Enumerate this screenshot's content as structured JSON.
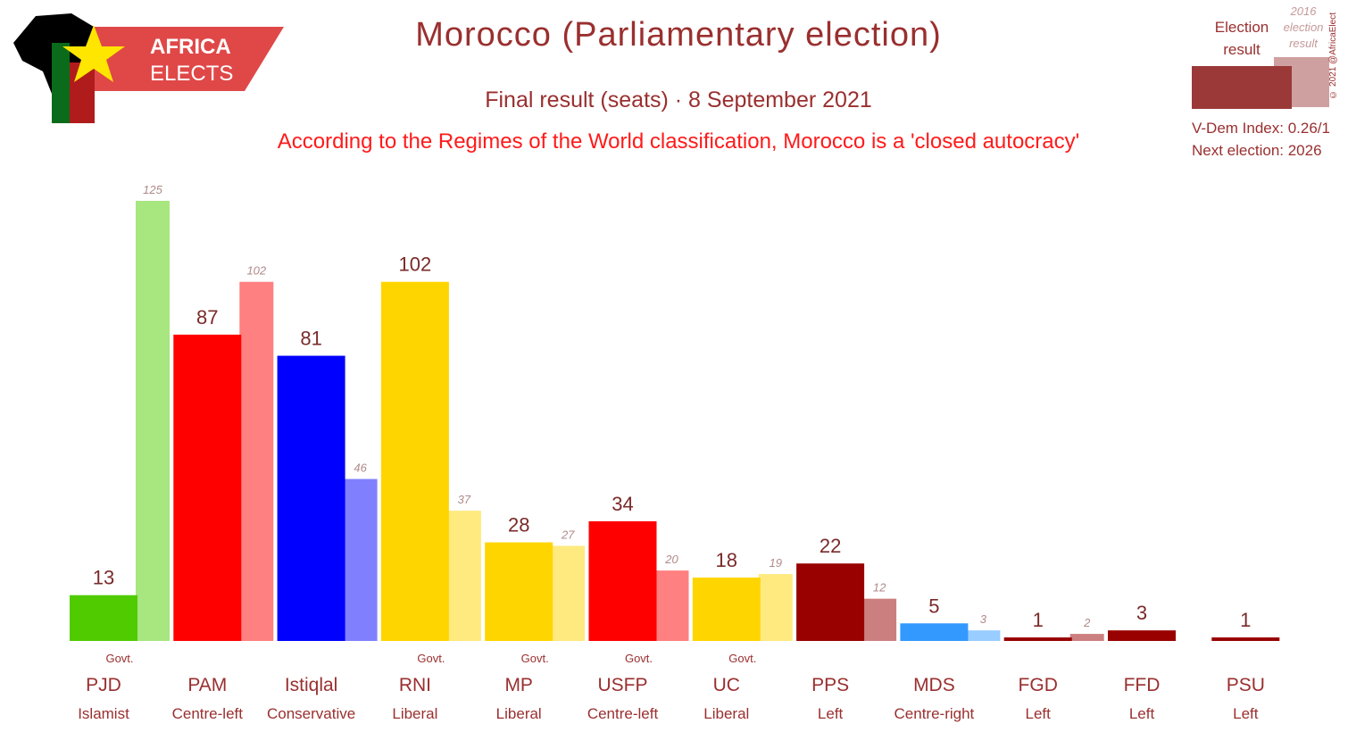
{
  "logo": {
    "line1": "AFRICA",
    "line2": "ELECTS"
  },
  "header": {
    "title": "Morocco (Parliamentary election)",
    "subtitle": "Final result (seats) · 8 September 2021",
    "note": "According to the Regimes of the World classification, Morocco is a 'closed autocracy'"
  },
  "legend": {
    "current_label": "Election result",
    "previous_label": "2016 election result",
    "current_color": "#9b3939",
    "previous_color": "#cfa0a0"
  },
  "meta": {
    "vdem": "V-Dem Index: 0.26/1",
    "next_election": "Next election: 2026",
    "copyright": "© 2021 @AfricaElect"
  },
  "chart_data": {
    "type": "bar",
    "title": "Morocco (Parliamentary election)",
    "ylim": [
      0,
      125
    ],
    "gov_label": "Govt.",
    "categories": [
      "PJD",
      "PAM",
      "Istiqlal",
      "RNI",
      "MP",
      "USFP",
      "UC",
      "PPS",
      "MDS",
      "FGD",
      "FFD",
      "PSU"
    ],
    "ideologies": [
      "Islamist",
      "Centre-left",
      "Conservative",
      "Liberal",
      "Liberal",
      "Centre-left",
      "Liberal",
      "Left",
      "Centre-right",
      "Left",
      "Left",
      "Left"
    ],
    "government": [
      true,
      false,
      false,
      true,
      true,
      true,
      true,
      false,
      false,
      false,
      false,
      false
    ],
    "colors": [
      "#4fcb00",
      "#ff0000",
      "#0000ff",
      "#ffd500",
      "#ffd500",
      "#ff0000",
      "#ffd500",
      "#990000",
      "#3399ff",
      "#990000",
      "#990000",
      "#990000"
    ],
    "prev_colors": [
      "#a8e680",
      "#ff8080",
      "#8080ff",
      "#ffea80",
      "#ffea80",
      "#ff8080",
      "#ffea80",
      "#cc7f7f",
      "#99ccff",
      "#cc7f7f",
      "#cc7f7f",
      "#cc7f7f"
    ],
    "series": [
      {
        "name": "Election result",
        "values": [
          13,
          87,
          81,
          102,
          28,
          34,
          18,
          22,
          5,
          1,
          3,
          1
        ]
      },
      {
        "name": "2016 election result",
        "values": [
          125,
          102,
          46,
          37,
          27,
          20,
          19,
          12,
          3,
          2,
          null,
          null
        ]
      }
    ]
  }
}
